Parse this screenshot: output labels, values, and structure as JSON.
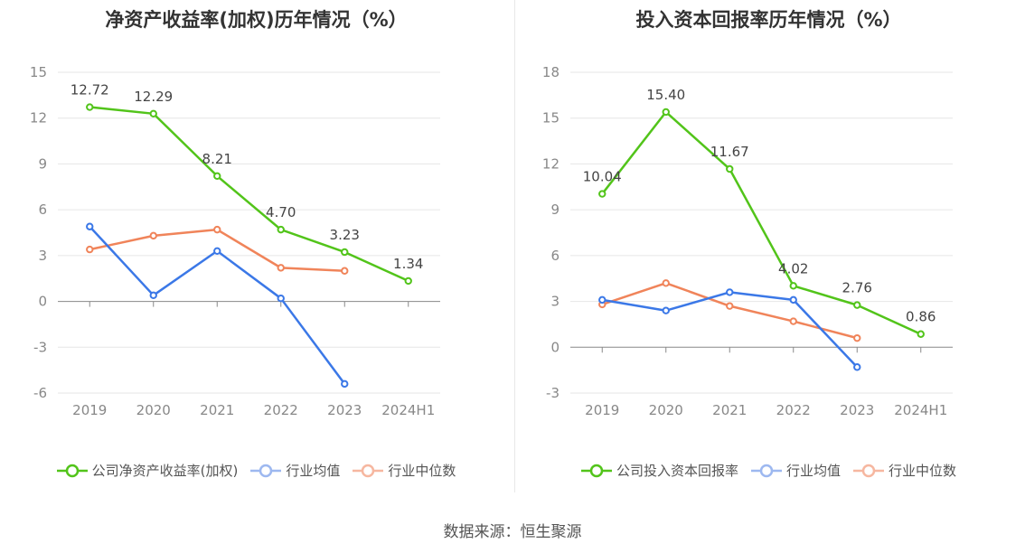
{
  "footer": "数据来源：恒生聚源",
  "chart_data": [
    {
      "type": "line",
      "title": "净资产收益率(加权)历年情况（%）",
      "x": [
        "2019",
        "2020",
        "2021",
        "2022",
        "2023",
        "2024H1"
      ],
      "ylim": [
        -6,
        15
      ],
      "yticks": [
        -6,
        -3,
        0,
        3,
        6,
        9,
        12,
        15
      ],
      "grid": true,
      "legend_position": "bottom",
      "series": [
        {
          "name": "公司净资产收益率(加权)",
          "color": "#52c41a",
          "values": [
            12.72,
            12.29,
            8.21,
            4.7,
            3.23,
            1.34
          ],
          "labels": [
            "12.72",
            "12.29",
            "8.21",
            "4.70",
            "3.23",
            "1.34"
          ]
        },
        {
          "name": "行业均值",
          "color": "#3b78e7",
          "values": [
            4.9,
            0.4,
            3.3,
            0.2,
            -5.4,
            null
          ]
        },
        {
          "name": "行业中位数",
          "color": "#f0845a",
          "values": [
            3.4,
            4.3,
            4.7,
            2.2,
            2.0,
            null
          ]
        }
      ]
    },
    {
      "type": "line",
      "title": "投入资本回报率历年情况（%）",
      "x": [
        "2019",
        "2020",
        "2021",
        "2022",
        "2023",
        "2024H1"
      ],
      "ylim": [
        -3,
        18
      ],
      "yticks": [
        -3,
        0,
        3,
        6,
        9,
        12,
        15,
        18
      ],
      "grid": true,
      "legend_position": "bottom",
      "series": [
        {
          "name": "公司投入资本回报率",
          "color": "#52c41a",
          "values": [
            10.04,
            15.4,
            11.67,
            4.02,
            2.76,
            0.86
          ],
          "labels": [
            "10.04",
            "15.40",
            "11.67",
            "4.02",
            "2.76",
            "0.86"
          ]
        },
        {
          "name": "行业均值",
          "color": "#3b78e7",
          "values": [
            3.1,
            2.4,
            3.6,
            3.1,
            -1.3,
            null
          ]
        },
        {
          "name": "行业中位数",
          "color": "#f0845a",
          "values": [
            2.8,
            4.2,
            2.7,
            1.7,
            0.6,
            null
          ]
        }
      ]
    }
  ]
}
